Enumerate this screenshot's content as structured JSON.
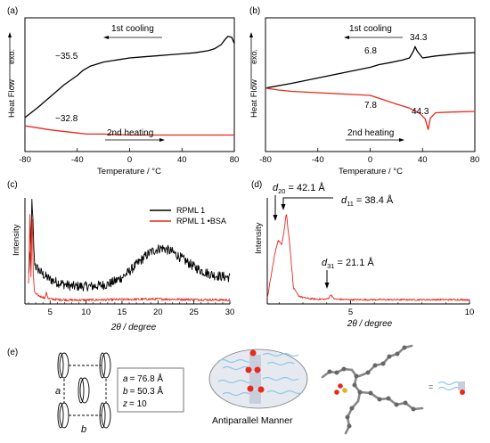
{
  "colors": {
    "black": "#000000",
    "red": "#e8291c",
    "grey_box": "#777777",
    "ellipse_fill": "#e6e9f0",
    "blue_chain": "#8ec7ea",
    "block_fill": "#c8cfdc",
    "dot_red": "#e8291c"
  },
  "chart_data": [
    {
      "panel": "(a)",
      "type": "line",
      "xlabel": "Temperature / °C",
      "ylabel": "Heat Flow",
      "ylabel_tag": "exo.",
      "xlim": [
        -80,
        80
      ],
      "xticks": [
        "-80",
        "-40",
        "0",
        "40",
        "80"
      ],
      "annotations": {
        "top_label": "1st cooling",
        "bottom_label": "2nd heating",
        "top_value": "−35.5",
        "bottom_value": "−32.8"
      },
      "series": [
        {
          "color": "black",
          "x": [
            -80,
            -70,
            -60,
            -50,
            -40,
            -35.5,
            -30,
            -20,
            -10,
            0,
            10,
            20,
            30,
            40,
            50,
            60,
            65,
            70,
            73,
            75,
            78,
            80
          ],
          "y": [
            0.08,
            0.18,
            0.29,
            0.4,
            0.49,
            0.54,
            0.58,
            0.62,
            0.64,
            0.66,
            0.67,
            0.68,
            0.69,
            0.7,
            0.71,
            0.73,
            0.75,
            0.79,
            0.84,
            0.87,
            0.86,
            0.8
          ]
        },
        {
          "color": "red",
          "x": [
            -80,
            -60,
            -40,
            -32.8,
            -20,
            0,
            20,
            40,
            60,
            80
          ],
          "y": [
            0.0,
            -0.04,
            -0.07,
            -0.08,
            -0.08,
            -0.09,
            -0.09,
            -0.09,
            -0.09,
            -0.09
          ]
        }
      ]
    },
    {
      "panel": "(b)",
      "type": "line",
      "xlabel": "Temperature / °C",
      "ylabel": "Heat Flow",
      "ylabel_tag": "exo.",
      "xlim": [
        -80,
        80
      ],
      "xticks": [
        "-80",
        "-40",
        "0",
        "40",
        "80"
      ],
      "annotations": {
        "top_label": "1st cooling",
        "bottom_label": "2nd heating",
        "v1": "6.8",
        "v2": "34.3",
        "v3": "7.8",
        "v4": "44.3"
      },
      "series": [
        {
          "color": "black",
          "x": [
            -80,
            -60,
            -40,
            -20,
            0,
            6.8,
            15,
            25,
            30,
            33,
            34.3,
            36,
            40,
            50,
            60,
            70,
            80
          ],
          "y": [
            0.0,
            0.07,
            0.15,
            0.23,
            0.31,
            0.35,
            0.38,
            0.42,
            0.45,
            0.55,
            0.62,
            0.55,
            0.45,
            0.48,
            0.5,
            0.52,
            0.53
          ]
        },
        {
          "color": "red",
          "x": [
            -80,
            -70,
            -60,
            -40,
            -20,
            0,
            7.8,
            20,
            30,
            38,
            42,
            44.3,
            46,
            50,
            60,
            80
          ],
          "y": [
            0.0,
            -0.03,
            -0.05,
            -0.07,
            -0.09,
            -0.11,
            -0.16,
            -0.24,
            -0.3,
            -0.38,
            -0.46,
            -0.62,
            -0.45,
            -0.37,
            -0.36,
            -0.35
          ]
        }
      ]
    },
    {
      "panel": "(c)",
      "type": "line",
      "xlabel": "2θ / degree",
      "ylabel": "Intensity",
      "xlim": [
        1.5,
        30
      ],
      "xticks": [
        "5",
        "10",
        "15",
        "20",
        "25",
        "30"
      ],
      "legend": [
        "RPML 1",
        "RPML 1 •BSA"
      ],
      "series": [
        {
          "name": "RPML 1",
          "color": "black",
          "x": [
            2.0,
            2.3,
            2.45,
            2.6,
            2.8,
            3.0,
            3.5,
            4,
            5,
            6,
            7,
            8,
            9,
            10,
            11,
            12,
            13,
            14,
            15,
            16,
            17,
            18,
            19,
            20,
            20.5,
            21,
            22,
            23,
            24,
            25,
            26,
            27,
            28,
            29,
            30
          ],
          "y": [
            0.3,
            0.55,
            1.05,
            0.85,
            0.45,
            0.38,
            0.34,
            0.3,
            0.25,
            0.22,
            0.2,
            0.18,
            0.18,
            0.18,
            0.18,
            0.19,
            0.2,
            0.23,
            0.27,
            0.33,
            0.4,
            0.47,
            0.53,
            0.56,
            0.57,
            0.56,
            0.53,
            0.48,
            0.43,
            0.38,
            0.34,
            0.31,
            0.29,
            0.28,
            0.27
          ],
          "noise": 0.05
        },
        {
          "name": "RPML 1 •BSA",
          "color": "red",
          "x": [
            2.0,
            2.2,
            2.35,
            2.5,
            2.65,
            2.8,
            3.0,
            3.5,
            4.0,
            4.3,
            4.5,
            4.7,
            5.0,
            6,
            8,
            10,
            15,
            20,
            25,
            30
          ],
          "y": [
            0.2,
            0.92,
            0.2,
            1.02,
            0.3,
            0.14,
            0.1,
            0.08,
            0.07,
            0.06,
            0.12,
            0.06,
            0.05,
            0.045,
            0.04,
            0.04,
            0.045,
            0.05,
            0.045,
            0.04
          ],
          "noise": 0.012
        }
      ]
    },
    {
      "panel": "(d)",
      "type": "line",
      "xlabel": "2θ / degree",
      "ylabel": "Intensity",
      "xlim": [
        1.5,
        10
      ],
      "xticks": [
        "5",
        "10"
      ],
      "peaks": [
        {
          "label": "d20",
          "sub": "20",
          "value": "= 42.1 Å",
          "two_theta": 2.1
        },
        {
          "label": "d11",
          "sub": "11",
          "value": "= 38.4 Å",
          "two_theta": 2.3
        },
        {
          "label": "d31",
          "sub": "31",
          "value": "= 21.1 Å",
          "two_theta": 4.18
        }
      ],
      "series": [
        {
          "color": "red",
          "x": [
            1.5,
            1.8,
            1.95,
            2.1,
            2.2,
            2.3,
            2.45,
            2.6,
            2.8,
            3.0,
            3.3,
            3.6,
            4.0,
            4.1,
            4.18,
            4.25,
            4.35,
            5,
            6,
            7,
            8,
            9,
            10
          ],
          "y": [
            0.05,
            0.45,
            0.6,
            0.56,
            0.68,
            0.86,
            0.55,
            0.15,
            0.08,
            0.06,
            0.05,
            0.045,
            0.045,
            0.06,
            0.09,
            0.06,
            0.045,
            0.04,
            0.04,
            0.04,
            0.04,
            0.04,
            0.04
          ],
          "noise": 0.008
        }
      ]
    }
  ],
  "panel_e": {
    "label": "(e)",
    "lattice_labels": {
      "a": "a",
      "b": "b"
    },
    "params": [
      {
        "sym": "a",
        "value": "= 76.8 Å"
      },
      {
        "sym": "b",
        "value": "= 50.3 Å"
      },
      {
        "sym": "z",
        "value": "= 10"
      }
    ],
    "manner": "Antiparallel Manner",
    "equals": "="
  }
}
